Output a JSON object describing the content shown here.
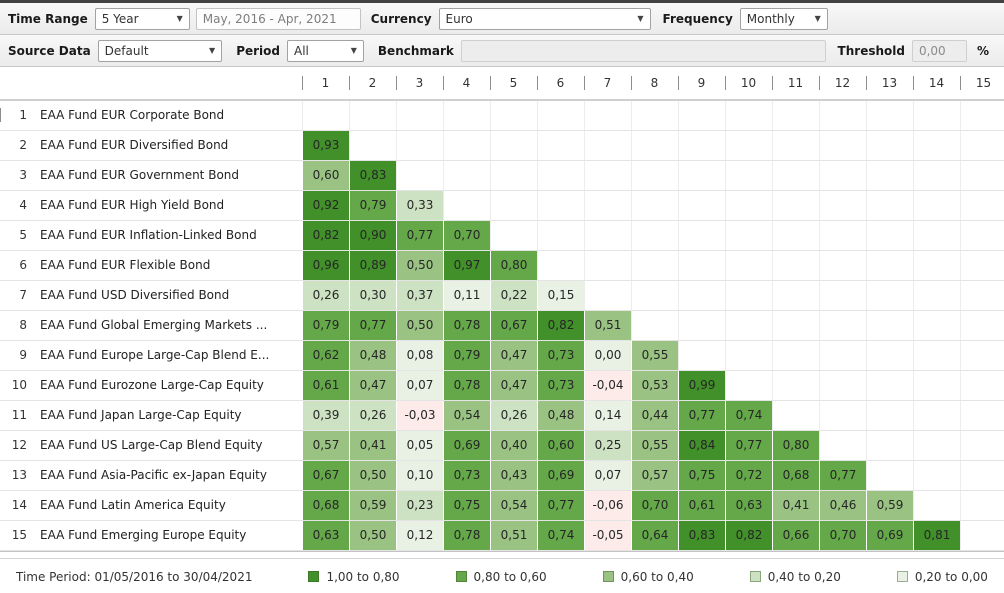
{
  "toolbar": {
    "row1": {
      "time_range_label": "Time Range",
      "time_range_value": "5 Year",
      "date_range_value": "May, 2016 - Apr, 2021",
      "currency_label": "Currency",
      "currency_value": "Euro",
      "frequency_label": "Frequency",
      "frequency_value": "Monthly"
    },
    "row2": {
      "source_data_label": "Source Data",
      "source_data_value": "Default",
      "period_label": "Period",
      "period_value": "All",
      "benchmark_label": "Benchmark",
      "benchmark_value": "",
      "threshold_label": "Threshold",
      "threshold_value": "0,00",
      "threshold_unit": "%"
    }
  },
  "cell_colors": {
    "1": "#41902a",
    "2": "#64a84a",
    "3": "#9ac383",
    "4": "#cde2c2",
    "5": "#e9f1e4",
    "0": "#fcebe9"
  },
  "matrix": {
    "column_headers": [
      "1",
      "2",
      "3",
      "4",
      "5",
      "6",
      "7",
      "8",
      "9",
      "10",
      "11",
      "12",
      "13",
      "14",
      "15"
    ],
    "rows": [
      {
        "num": "1",
        "name": "EAA Fund EUR Corporate Bond",
        "values": [],
        "levels": []
      },
      {
        "num": "2",
        "name": "EAA Fund EUR Diversified Bond",
        "values": [
          "0,93"
        ],
        "levels": [
          1
        ]
      },
      {
        "num": "3",
        "name": "EAA Fund EUR Government Bond",
        "values": [
          "0,60",
          "0,83"
        ],
        "levels": [
          3,
          1
        ]
      },
      {
        "num": "4",
        "name": "EAA Fund EUR High Yield Bond",
        "values": [
          "0,92",
          "0,79",
          "0,33"
        ],
        "levels": [
          1,
          2,
          4
        ]
      },
      {
        "num": "5",
        "name": "EAA Fund EUR Inflation-Linked Bond",
        "values": [
          "0,82",
          "0,90",
          "0,77",
          "0,70"
        ],
        "levels": [
          1,
          1,
          2,
          2
        ]
      },
      {
        "num": "6",
        "name": "EAA Fund EUR Flexible Bond",
        "values": [
          "0,96",
          "0,89",
          "0,50",
          "0,97",
          "0,80"
        ],
        "levels": [
          1,
          1,
          3,
          1,
          2
        ]
      },
      {
        "num": "7",
        "name": "EAA Fund USD Diversified Bond",
        "values": [
          "0,26",
          "0,30",
          "0,37",
          "0,11",
          "0,22",
          "0,15"
        ],
        "levels": [
          4,
          4,
          4,
          5,
          4,
          5
        ]
      },
      {
        "num": "8",
        "name": "EAA Fund Global Emerging Markets ...",
        "values": [
          "0,79",
          "0,77",
          "0,50",
          "0,78",
          "0,67",
          "0,82",
          "0,51"
        ],
        "levels": [
          2,
          2,
          3,
          2,
          2,
          1,
          3
        ]
      },
      {
        "num": "9",
        "name": "EAA Fund Europe Large-Cap Blend E...",
        "values": [
          "0,62",
          "0,48",
          "0,08",
          "0,79",
          "0,47",
          "0,73",
          "0,00",
          "0,55"
        ],
        "levels": [
          2,
          3,
          5,
          2,
          3,
          2,
          5,
          3
        ]
      },
      {
        "num": "10",
        "name": "EAA Fund Eurozone Large-Cap Equity",
        "values": [
          "0,61",
          "0,47",
          "0,07",
          "0,78",
          "0,47",
          "0,73",
          "-0,04",
          "0,53",
          "0,99"
        ],
        "levels": [
          2,
          3,
          5,
          2,
          3,
          2,
          0,
          3,
          1
        ]
      },
      {
        "num": "11",
        "name": "EAA Fund Japan Large-Cap Equity",
        "values": [
          "0,39",
          "0,26",
          "-0,03",
          "0,54",
          "0,26",
          "0,48",
          "0,14",
          "0,44",
          "0,77",
          "0,74"
        ],
        "levels": [
          4,
          4,
          0,
          3,
          4,
          3,
          5,
          3,
          2,
          2
        ]
      },
      {
        "num": "12",
        "name": "EAA Fund US Large-Cap Blend Equity",
        "values": [
          "0,57",
          "0,41",
          "0,05",
          "0,69",
          "0,40",
          "0,60",
          "0,25",
          "0,55",
          "0,84",
          "0,77",
          "0,80"
        ],
        "levels": [
          3,
          3,
          5,
          2,
          3,
          2,
          4,
          3,
          1,
          2,
          2
        ]
      },
      {
        "num": "13",
        "name": "EAA Fund Asia-Pacific ex-Japan Equity",
        "values": [
          "0,67",
          "0,50",
          "0,10",
          "0,73",
          "0,43",
          "0,69",
          "0,07",
          "0,57",
          "0,75",
          "0,72",
          "0,68",
          "0,77"
        ],
        "levels": [
          2,
          3,
          5,
          2,
          3,
          2,
          5,
          3,
          2,
          2,
          2,
          2
        ]
      },
      {
        "num": "14",
        "name": "EAA Fund Latin America Equity",
        "values": [
          "0,68",
          "0,59",
          "0,23",
          "0,75",
          "0,54",
          "0,77",
          "-0,06",
          "0,70",
          "0,61",
          "0,63",
          "0,41",
          "0,46",
          "0,59"
        ],
        "levels": [
          2,
          3,
          4,
          2,
          3,
          2,
          0,
          2,
          2,
          2,
          3,
          3,
          3
        ]
      },
      {
        "num": "15",
        "name": "EAA Fund Emerging Europe Equity",
        "values": [
          "0,63",
          "0,50",
          "0,12",
          "0,78",
          "0,51",
          "0,74",
          "-0,05",
          "0,64",
          "0,83",
          "0,82",
          "0,66",
          "0,70",
          "0,69",
          "0,81"
        ],
        "levels": [
          2,
          3,
          5,
          2,
          3,
          2,
          0,
          2,
          1,
          1,
          2,
          2,
          2,
          1
        ]
      }
    ]
  },
  "legend": {
    "time_period": "Time Period: 01/05/2016 to 30/04/2021",
    "items": [
      {
        "label": "1,00 to 0,80",
        "color": "#41902a"
      },
      {
        "label": "0,80 to 0,60",
        "color": "#64a84a"
      },
      {
        "label": "0,60 to 0,40",
        "color": "#9ac383"
      },
      {
        "label": "0,40 to 0,20",
        "color": "#cde2c2"
      },
      {
        "label": "0,20 to 0,00",
        "color": "#e9f1e4"
      }
    ]
  },
  "chart_data": {
    "type": "heatmap",
    "title": "Fund correlation matrix, May 2016 - Apr 2021, Monthly, Euro",
    "categories": [
      "EAA Fund EUR Corporate Bond",
      "EAA Fund EUR Diversified Bond",
      "EAA Fund EUR Government Bond",
      "EAA Fund EUR High Yield Bond",
      "EAA Fund EUR Inflation-Linked Bond",
      "EAA Fund EUR Flexible Bond",
      "EAA Fund USD Diversified Bond",
      "EAA Fund Global Emerging Markets ...",
      "EAA Fund Europe Large-Cap Blend E...",
      "EAA Fund Eurozone Large-Cap Equity",
      "EAA Fund Japan Large-Cap Equity",
      "EAA Fund US Large-Cap Blend Equity",
      "EAA Fund Asia-Pacific ex-Japan Equity",
      "EAA Fund Latin America Equity",
      "EAA Fund Emerging Europe Equity"
    ],
    "lower_triangle_values": [
      [],
      [
        0.93
      ],
      [
        0.6,
        0.83
      ],
      [
        0.92,
        0.79,
        0.33
      ],
      [
        0.82,
        0.9,
        0.77,
        0.7
      ],
      [
        0.96,
        0.89,
        0.5,
        0.97,
        0.8
      ],
      [
        0.26,
        0.3,
        0.37,
        0.11,
        0.22,
        0.15
      ],
      [
        0.79,
        0.77,
        0.5,
        0.78,
        0.67,
        0.82,
        0.51
      ],
      [
        0.62,
        0.48,
        0.08,
        0.79,
        0.47,
        0.73,
        0.0,
        0.55
      ],
      [
        0.61,
        0.47,
        0.07,
        0.78,
        0.47,
        0.73,
        -0.04,
        0.53,
        0.99
      ],
      [
        0.39,
        0.26,
        -0.03,
        0.54,
        0.26,
        0.48,
        0.14,
        0.44,
        0.77,
        0.74
      ],
      [
        0.57,
        0.41,
        0.05,
        0.69,
        0.4,
        0.6,
        0.25,
        0.55,
        0.84,
        0.77,
        0.8
      ],
      [
        0.67,
        0.5,
        0.1,
        0.73,
        0.43,
        0.69,
        0.07,
        0.57,
        0.75,
        0.72,
        0.68,
        0.77
      ],
      [
        0.68,
        0.59,
        0.23,
        0.75,
        0.54,
        0.77,
        -0.06,
        0.7,
        0.61,
        0.63,
        0.41,
        0.46,
        0.59
      ],
      [
        0.63,
        0.5,
        0.12,
        0.78,
        0.51,
        0.74,
        -0.05,
        0.64,
        0.83,
        0.82,
        0.66,
        0.7,
        0.69,
        0.81
      ]
    ],
    "legend_position": "bottom",
    "color_buckets": [
      "1,00 to 0,80",
      "0,80 to 0,60",
      "0,60 to 0,40",
      "0,40 to 0,20",
      "0,20 to 0,00"
    ]
  }
}
